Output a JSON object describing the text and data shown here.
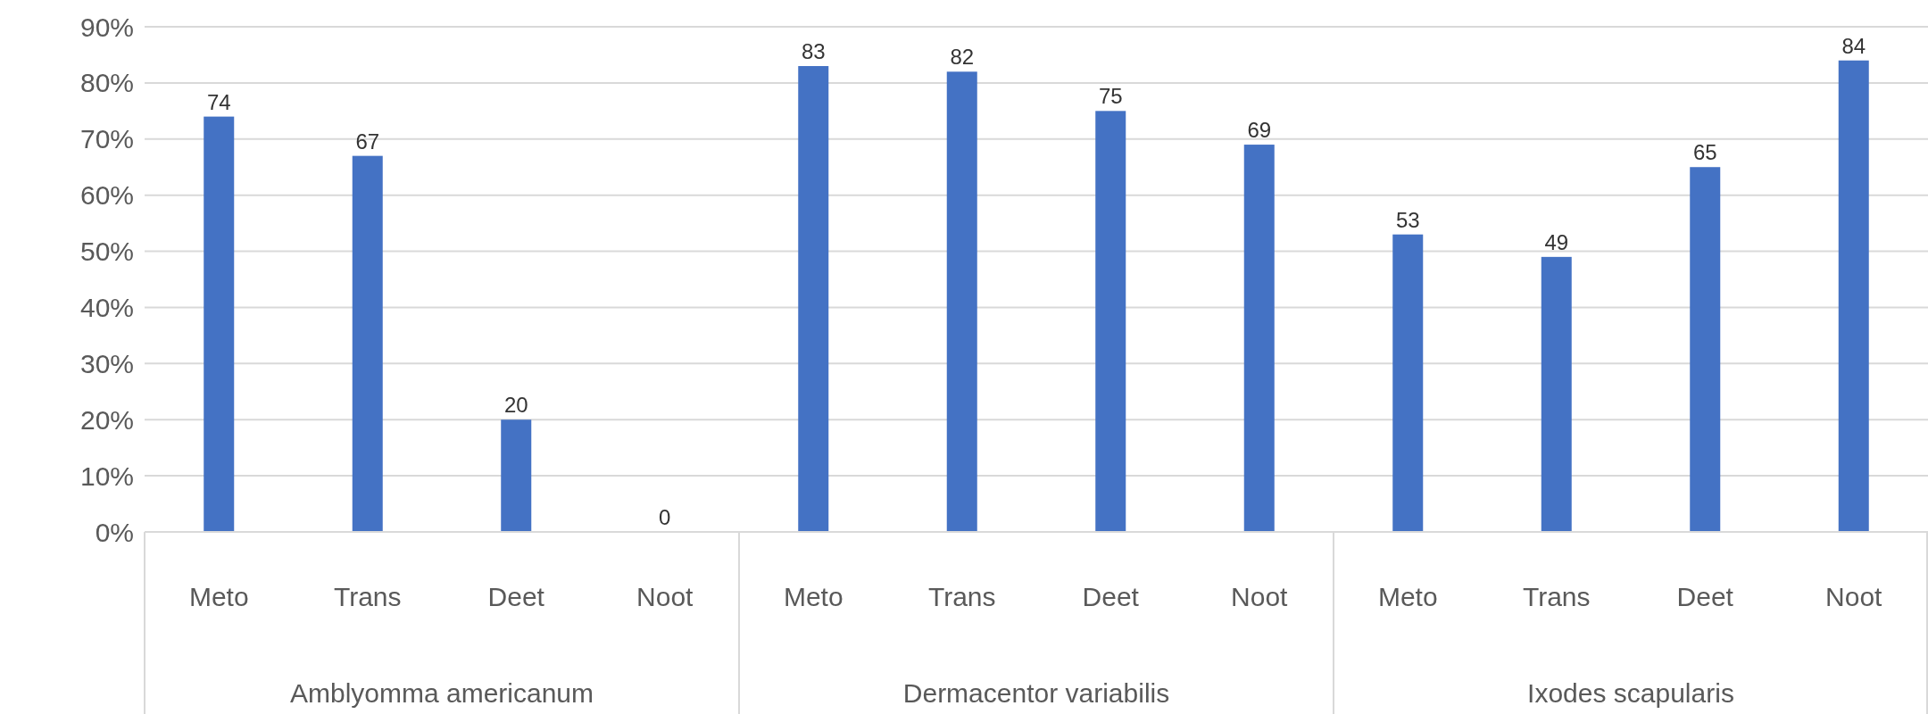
{
  "chart_data": {
    "type": "bar",
    "categories": [
      "Meto",
      "Trans",
      "Deet",
      "Noot",
      "Meto",
      "Trans",
      "Deet",
      "Noot",
      "Meto",
      "Trans",
      "Deet",
      "Noot"
    ],
    "values": [
      74,
      67,
      20,
      0,
      83,
      82,
      75,
      69,
      53,
      49,
      65,
      84
    ],
    "color": "#4472c4",
    "ylim": [
      0,
      90
    ],
    "yticks": [
      {
        "value": 0,
        "label": "0%"
      },
      {
        "value": 10,
        "label": "10%"
      },
      {
        "value": 20,
        "label": "20%"
      },
      {
        "value": 30,
        "label": "30%"
      },
      {
        "value": 40,
        "label": "40%"
      },
      {
        "value": 50,
        "label": "50%"
      },
      {
        "value": 60,
        "label": "60%"
      },
      {
        "value": 70,
        "label": "70%"
      },
      {
        "value": 80,
        "label": "80%"
      },
      {
        "value": 90,
        "label": "90%"
      }
    ],
    "grid": "y",
    "data_labels": true,
    "annotations": [
      "Amblyomma americanum",
      "Dermacentor variabilis",
      "Ixodes scapularis"
    ]
  }
}
